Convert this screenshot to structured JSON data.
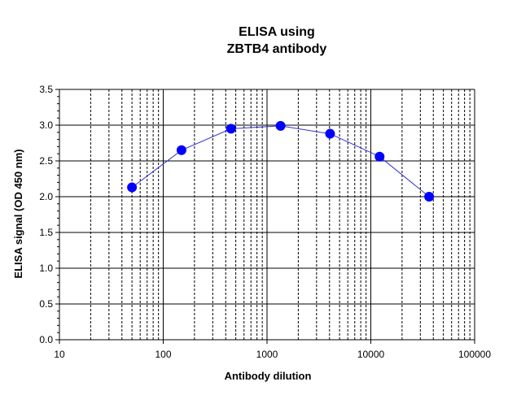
{
  "chart_data": {
    "type": "scatter",
    "title_lines": [
      "ELISA using",
      "ZBTB4 antibody"
    ],
    "xlabel": "Antibody dilution",
    "ylabel": "ELISA signal (OD 450 nm)",
    "x_scale": "log",
    "xlim": [
      10,
      100000
    ],
    "ylim": [
      0,
      3.5
    ],
    "x_ticks": [
      10,
      100,
      1000,
      10000,
      100000
    ],
    "x_tick_labels": [
      "10",
      "100",
      "1000",
      "10000",
      "100000"
    ],
    "y_ticks": [
      0,
      0.5,
      1.0,
      1.5,
      2.0,
      2.5,
      3.0,
      3.5
    ],
    "y_tick_labels": [
      "0.0",
      "0.5",
      "1.0",
      "1.5",
      "2.0",
      "2.5",
      "3.0",
      "3.5"
    ],
    "grid": true,
    "legend": "none",
    "series": [
      {
        "x": [
          50,
          150,
          450,
          1350,
          4050,
          12150,
          36450
        ],
        "y": [
          2.13,
          2.65,
          2.95,
          2.99,
          2.88,
          2.56,
          2.0
        ],
        "marker_color": "#0000ff",
        "line_color": "#3333cc"
      }
    ]
  }
}
